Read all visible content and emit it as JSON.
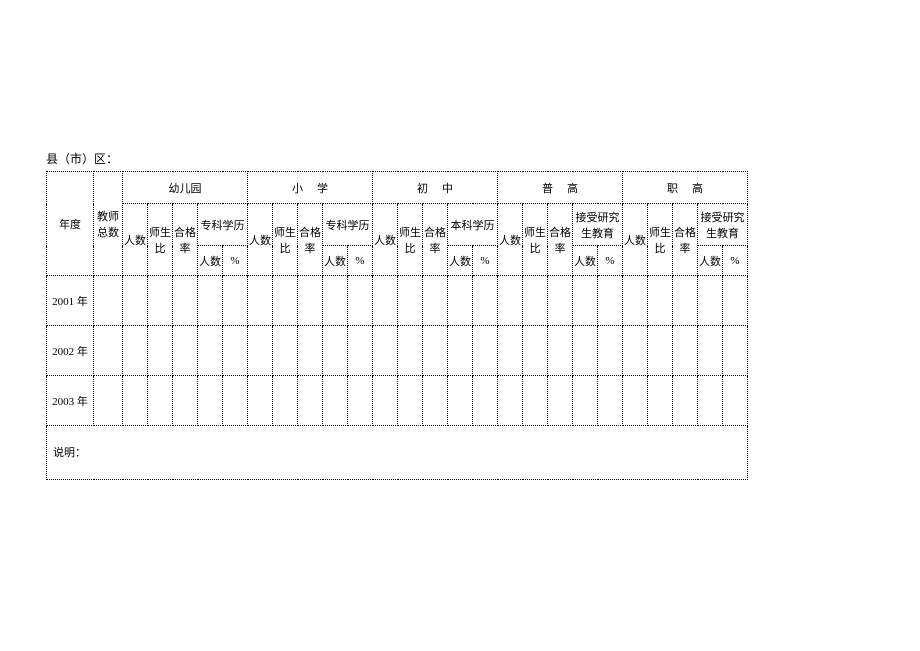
{
  "labels": {
    "region": "县（市）区：",
    "year": "年度",
    "total_teachers": "教师总数",
    "count": "人数",
    "ratio": "师生比",
    "pass": "合格率",
    "percent": "%",
    "note": "说明：",
    "stages": {
      "kindergarten": "幼儿园",
      "primary": "小学",
      "junior": "初中",
      "senior": "普高",
      "vocational": "职高"
    },
    "quals": {
      "zhuanke": "专科学历",
      "benke": "本科学历",
      "yanjiu": "接受研究生教育"
    }
  },
  "rows": [
    {
      "year": "2001 年",
      "cells": [
        "",
        "",
        "",
        "",
        "",
        "",
        "",
        "",
        "",
        "",
        "",
        "",
        "",
        "",
        "",
        "",
        "",
        "",
        "",
        "",
        "",
        "",
        "",
        "",
        "",
        ""
      ]
    },
    {
      "year": "2002 年",
      "cells": [
        "",
        "",
        "",
        "",
        "",
        "",
        "",
        "",
        "",
        "",
        "",
        "",
        "",
        "",
        "",
        "",
        "",
        "",
        "",
        "",
        "",
        "",
        "",
        "",
        "",
        ""
      ]
    },
    {
      "year": "2003 年",
      "cells": [
        "",
        "",
        "",
        "",
        "",
        "",
        "",
        "",
        "",
        "",
        "",
        "",
        "",
        "",
        "",
        "",
        "",
        "",
        "",
        "",
        "",
        "",
        "",
        "",
        "",
        ""
      ]
    }
  ],
  "note_text": ""
}
